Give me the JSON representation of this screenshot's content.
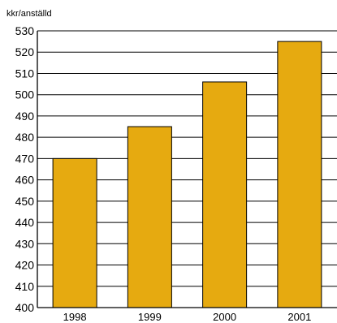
{
  "chart_data": {
    "type": "bar",
    "ylabel": "kkr/anställd",
    "categories": [
      "1998",
      "1999",
      "2000",
      "2001"
    ],
    "values": [
      470,
      485,
      506,
      525
    ],
    "ylim": [
      400,
      530
    ],
    "yticks": [
      400,
      410,
      420,
      430,
      440,
      450,
      460,
      470,
      480,
      490,
      500,
      510,
      520,
      530
    ],
    "grid": true,
    "bar_color": "#E6AA10",
    "bar_edge_color": "#000000"
  }
}
